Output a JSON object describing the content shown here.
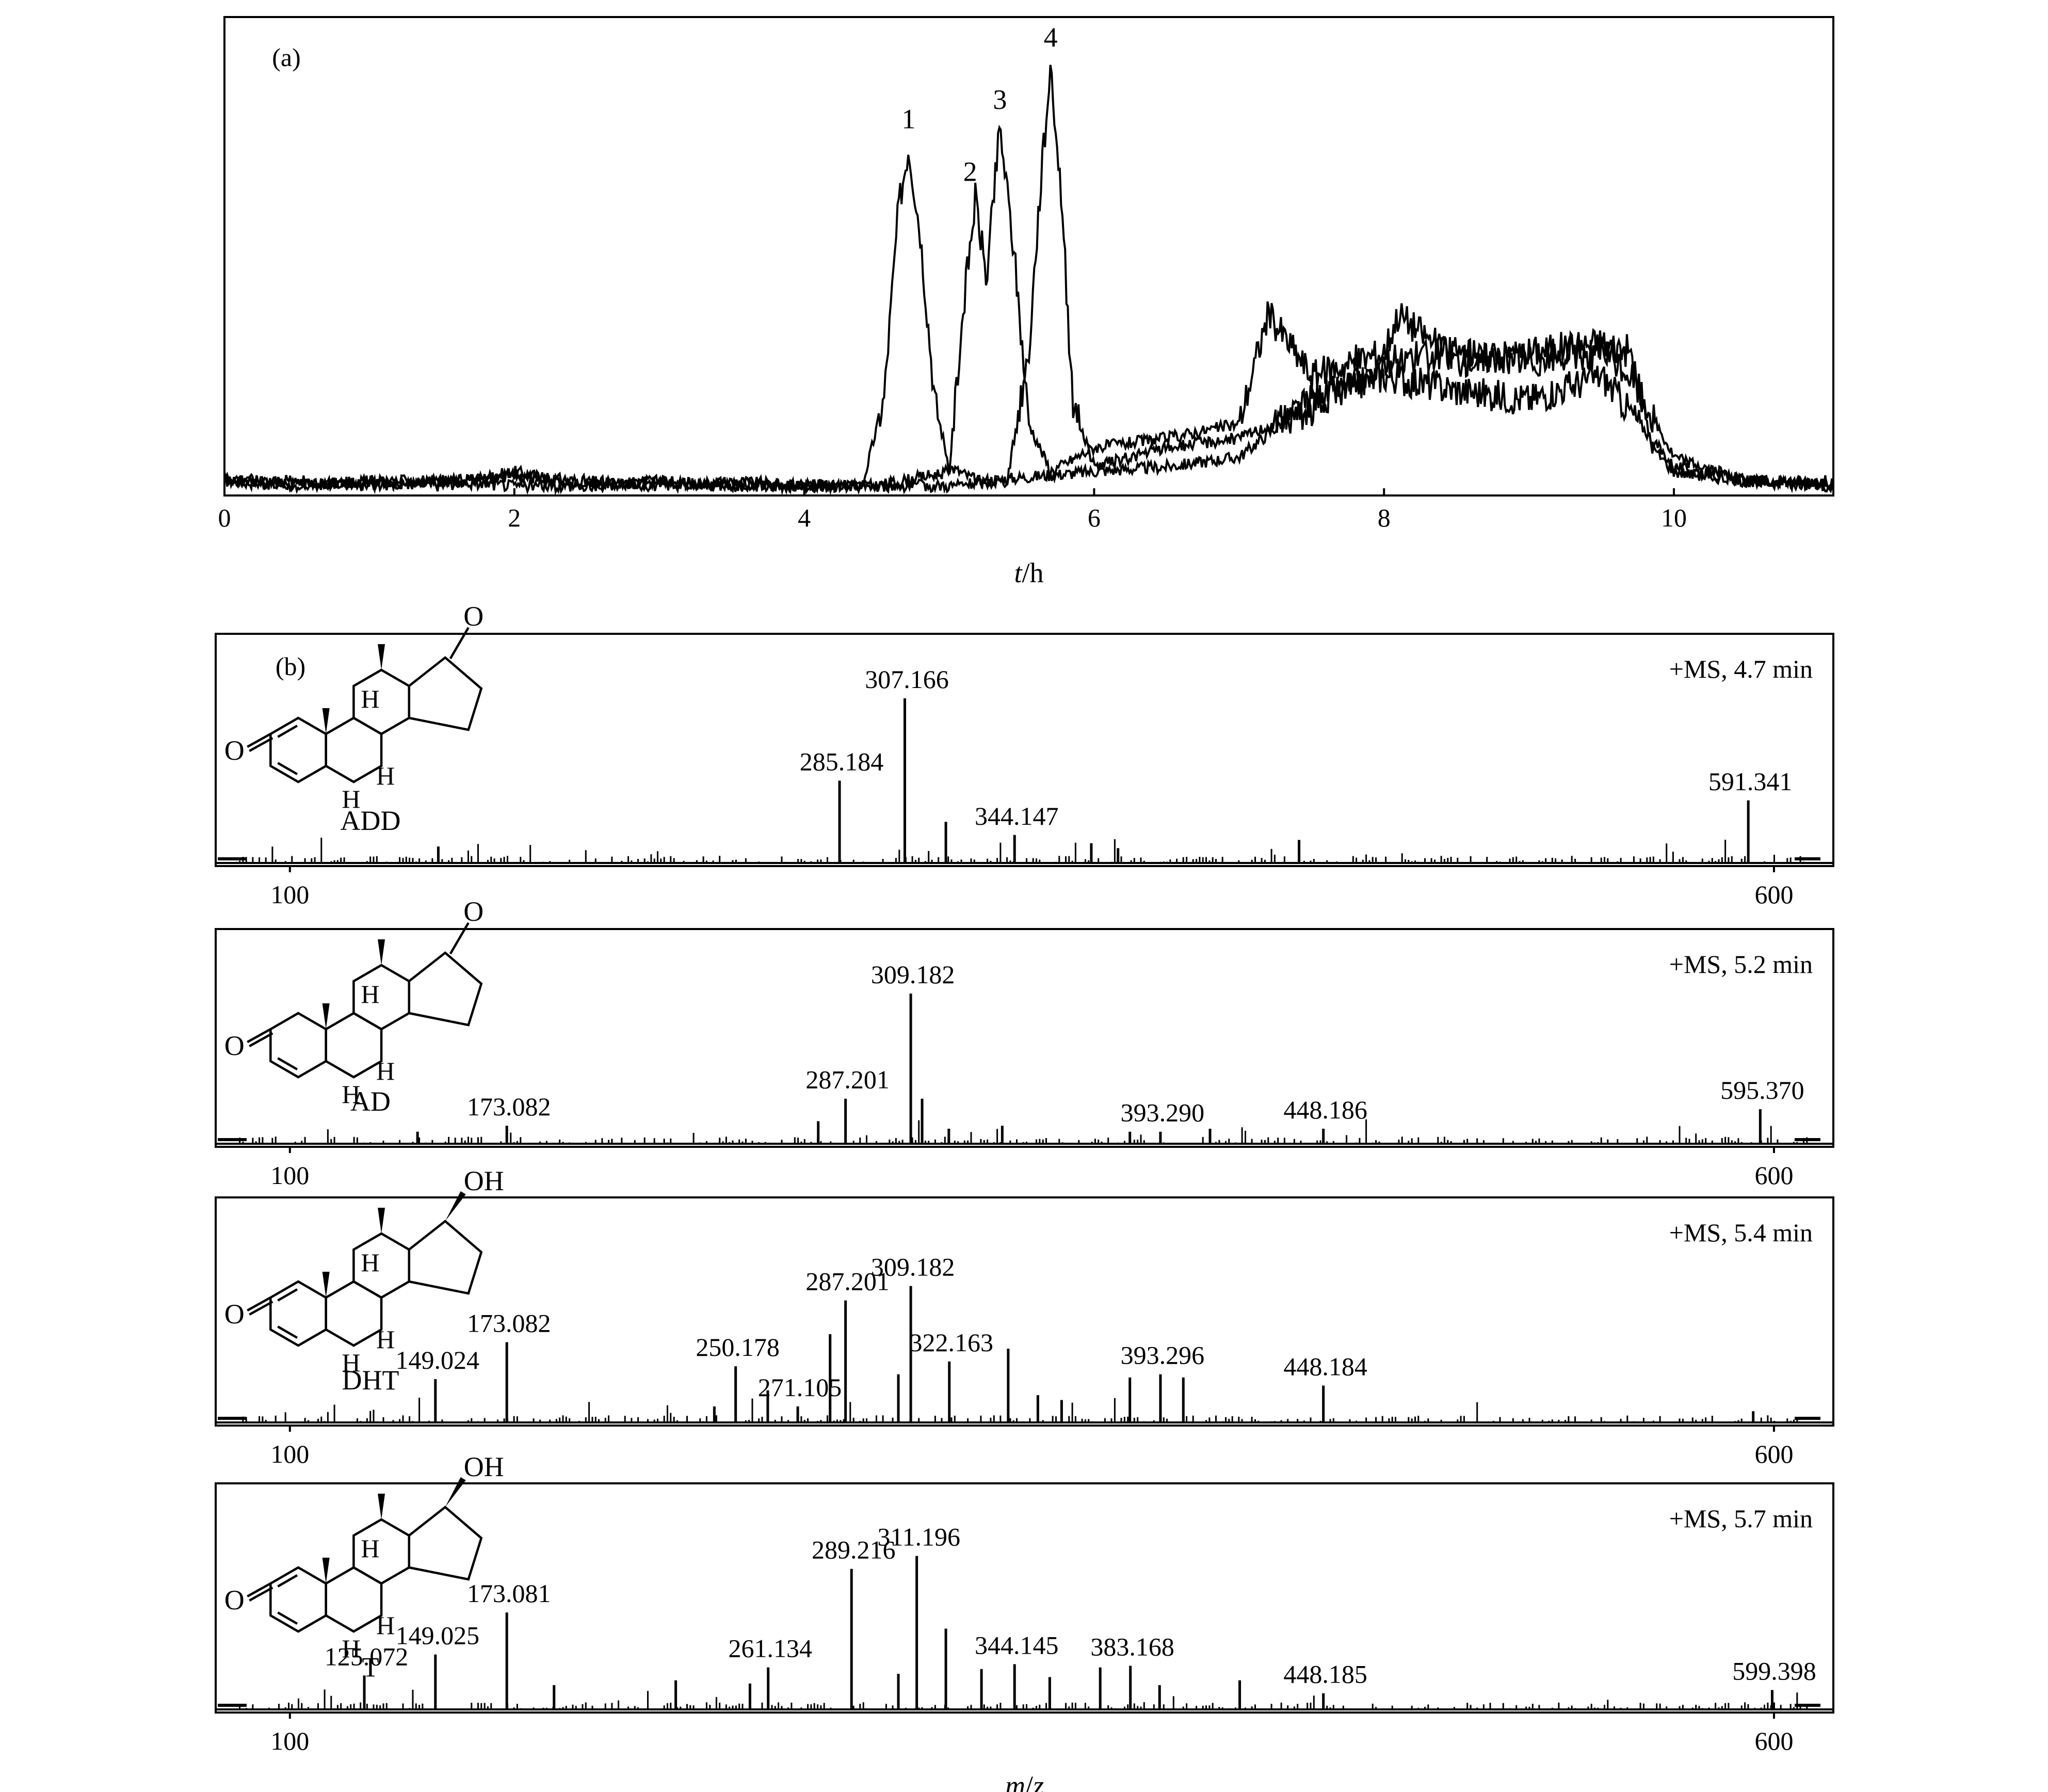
{
  "chart_data": [
    {
      "type": "line",
      "panel_label": "(a)",
      "xlabel_var": "t",
      "xlabel_unit": "/h",
      "xlim": [
        0,
        11.1
      ],
      "x_ticks": [
        "0",
        "2",
        "4",
        "6",
        "8",
        "10"
      ],
      "y_axis_labeled": false,
      "grid": false,
      "peaks": [
        {
          "label": "1",
          "x": 4.72,
          "rel_height": 0.73
        },
        {
          "label": "2",
          "x": 5.18,
          "rel_height": 0.62
        },
        {
          "label": "3",
          "x": 5.35,
          "rel_height": 0.77
        },
        {
          "label": "4",
          "x": 5.7,
          "rel_height": 0.9
        }
      ],
      "series": [
        {
          "values_x": [
            0,
            0.5,
            1,
            1.5,
            2,
            2.5,
            3,
            3.5,
            4,
            4.4,
            4.55,
            4.65,
            4.72,
            4.8,
            4.9,
            5.0,
            5.2,
            5.6,
            6,
            6.5,
            7,
            7.5,
            8,
            8.5,
            9,
            9.5,
            10,
            10.5,
            11.1
          ],
          "values_y": [
            0.03,
            0.02,
            0.03,
            0.02,
            0.05,
            0.02,
            0.03,
            0.02,
            0.02,
            0.02,
            0.2,
            0.6,
            0.73,
            0.55,
            0.2,
            0.06,
            0.03,
            0.04,
            0.05,
            0.06,
            0.08,
            0.2,
            0.25,
            0.22,
            0.2,
            0.25,
            0.06,
            0.03,
            0.02
          ]
        },
        {
          "values_x": [
            0,
            0.5,
            1,
            1.5,
            2,
            2.5,
            3,
            3.5,
            4,
            4.5,
            5.0,
            5.1,
            5.18,
            5.26,
            5.3,
            5.35,
            5.45,
            5.55,
            5.7,
            6,
            6.5,
            7,
            7.2,
            7.5,
            8,
            8.1,
            8.5,
            9,
            9.5,
            9.7,
            9.85,
            10,
            10.5,
            11.1
          ],
          "values_y": [
            0.04,
            0.02,
            0.03,
            0.03,
            0.04,
            0.03,
            0.02,
            0.03,
            0.02,
            0.02,
            0.05,
            0.4,
            0.62,
            0.45,
            0.6,
            0.77,
            0.5,
            0.15,
            0.05,
            0.1,
            0.12,
            0.15,
            0.38,
            0.25,
            0.3,
            0.38,
            0.28,
            0.3,
            0.32,
            0.3,
            0.1,
            0.05,
            0.03,
            0.03
          ]
        },
        {
          "values_x": [
            0,
            0.5,
            1,
            1.5,
            2,
            2.5,
            3,
            3.5,
            4,
            4.5,
            5.0,
            5.4,
            5.55,
            5.63,
            5.7,
            5.78,
            5.85,
            6.0,
            6.5,
            7,
            7.5,
            8,
            8.5,
            9,
            9.5,
            9.7,
            10,
            10.5,
            11.1
          ],
          "values_y": [
            0.03,
            0.03,
            0.02,
            0.03,
            0.02,
            0.02,
            0.03,
            0.02,
            0.02,
            0.02,
            0.02,
            0.03,
            0.3,
            0.65,
            0.9,
            0.6,
            0.2,
            0.06,
            0.1,
            0.12,
            0.18,
            0.28,
            0.3,
            0.28,
            0.3,
            0.25,
            0.08,
            0.03,
            0.02
          ]
        }
      ]
    },
    {
      "type": "bar",
      "panel_label": "(b)",
      "compound": "ADD",
      "scan_label": "+MS, 4.7 min",
      "xlim": [
        75,
        620
      ],
      "x_ticks": [
        "100",
        "600"
      ],
      "xlabel": "",
      "peaks": [
        {
          "mz": 150,
          "rel": 0.1
        },
        {
          "mz": 285.184,
          "rel": 0.5,
          "label": "285.184"
        },
        {
          "mz": 307.166,
          "rel": 1.0,
          "label": "307.166"
        },
        {
          "mz": 321,
          "rel": 0.25
        },
        {
          "mz": 344.147,
          "rel": 0.17,
          "label": "344.147"
        },
        {
          "mz": 370,
          "rel": 0.12
        },
        {
          "mz": 379,
          "rel": 0.09
        },
        {
          "mz": 440,
          "rel": 0.14
        },
        {
          "mz": 591.341,
          "rel": 0.38,
          "label": "591.341"
        }
      ]
    },
    {
      "type": "bar",
      "compound": "AD",
      "scan_label": "+MS, 5.2 min",
      "xlim": [
        75,
        620
      ],
      "x_ticks": [
        "100",
        "600"
      ],
      "xlabel": "",
      "peaks": [
        {
          "mz": 143,
          "rel": 0.08
        },
        {
          "mz": 173.082,
          "rel": 0.12,
          "label": "173.082"
        },
        {
          "mz": 278,
          "rel": 0.15
        },
        {
          "mz": 287.201,
          "rel": 0.3,
          "label": "287.201"
        },
        {
          "mz": 309.182,
          "rel": 1.0,
          "label": "309.182"
        },
        {
          "mz": 313,
          "rel": 0.3
        },
        {
          "mz": 322,
          "rel": 0.1
        },
        {
          "mz": 340,
          "rel": 0.12
        },
        {
          "mz": 383,
          "rel": 0.08
        },
        {
          "mz": 393.29,
          "rel": 0.08,
          "label": "393.290"
        },
        {
          "mz": 410,
          "rel": 0.1
        },
        {
          "mz": 448.186,
          "rel": 0.1,
          "label": "448.186"
        },
        {
          "mz": 595.37,
          "rel": 0.23,
          "label": "595.370"
        }
      ]
    },
    {
      "type": "bar",
      "compound": "DHT",
      "scan_label": "+MS, 5.4 min",
      "xlim": [
        75,
        620
      ],
      "x_ticks": [
        "100",
        "600"
      ],
      "xlabel": "",
      "peaks": [
        {
          "mz": 149.024,
          "rel": 0.27,
          "label": "149.024"
        },
        {
          "mz": 173.082,
          "rel": 0.5,
          "label": "173.082"
        },
        {
          "mz": 243,
          "rel": 0.1
        },
        {
          "mz": 250.178,
          "rel": 0.35,
          "label": "250.178"
        },
        {
          "mz": 261,
          "rel": 0.2
        },
        {
          "mz": 271.105,
          "rel": 0.1,
          "label": "271.105"
        },
        {
          "mz": 282,
          "rel": 0.55
        },
        {
          "mz": 287.201,
          "rel": 0.76,
          "label": "287.201"
        },
        {
          "mz": 305,
          "rel": 0.3
        },
        {
          "mz": 309.182,
          "rel": 0.85,
          "label": "309.182"
        },
        {
          "mz": 322.163,
          "rel": 0.38,
          "label": "322.163"
        },
        {
          "mz": 342,
          "rel": 0.46
        },
        {
          "mz": 352,
          "rel": 0.17
        },
        {
          "mz": 360,
          "rel": 0.14
        },
        {
          "mz": 383,
          "rel": 0.28
        },
        {
          "mz": 393.296,
          "rel": 0.3,
          "label": "393.296"
        },
        {
          "mz": 401,
          "rel": 0.28
        },
        {
          "mz": 448.184,
          "rel": 0.23,
          "label": "448.184"
        },
        {
          "mz": 593,
          "rel": 0.07
        }
      ]
    },
    {
      "type": "bar",
      "compound": "T",
      "scan_label": "+MS, 5.7 min",
      "xlim": [
        75,
        620
      ],
      "x_ticks": [
        "100",
        "600"
      ],
      "xlabel_var": "m",
      "xlabel_sep": "/",
      "xlabel_var2": "z",
      "peaks": [
        {
          "mz": 125.072,
          "rel": 0.21,
          "label": "125.072"
        },
        {
          "mz": 149.025,
          "rel": 0.34,
          "label": "149.025"
        },
        {
          "mz": 173.081,
          "rel": 0.6,
          "label": "173.081"
        },
        {
          "mz": 189,
          "rel": 0.15
        },
        {
          "mz": 230,
          "rel": 0.18
        },
        {
          "mz": 255,
          "rel": 0.16
        },
        {
          "mz": 261.134,
          "rel": 0.26,
          "label": "261.134"
        },
        {
          "mz": 289.216,
          "rel": 0.87,
          "label": "289.216"
        },
        {
          "mz": 305,
          "rel": 0.22
        },
        {
          "mz": 311.196,
          "rel": 0.95,
          "label": "311.196"
        },
        {
          "mz": 321,
          "rel": 0.5
        },
        {
          "mz": 333,
          "rel": 0.25
        },
        {
          "mz": 344.145,
          "rel": 0.28,
          "label": "344.145"
        },
        {
          "mz": 356,
          "rel": 0.2
        },
        {
          "mz": 373,
          "rel": 0.26
        },
        {
          "mz": 383.168,
          "rel": 0.27,
          "label": "383.168"
        },
        {
          "mz": 393,
          "rel": 0.15
        },
        {
          "mz": 420,
          "rel": 0.18
        },
        {
          "mz": 448.185,
          "rel": 0.1,
          "label": "448.185"
        },
        {
          "mz": 599.398,
          "rel": 0.12,
          "label": "599.398"
        }
      ]
    }
  ]
}
